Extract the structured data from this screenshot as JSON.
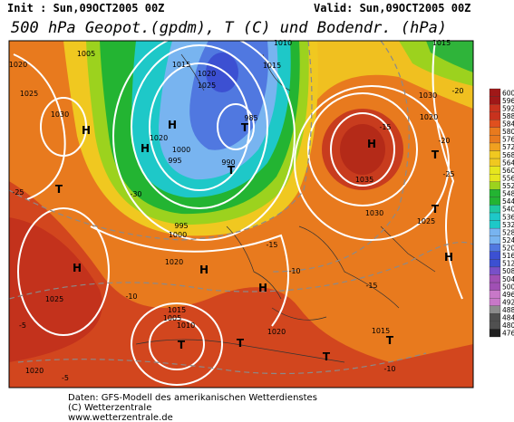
{
  "header": {
    "init": "Init : Sun,09OCT2005 00Z",
    "valid": "Valid: Sun,09OCT2005 00Z",
    "title": "500 hPa Geopot.(gpdm), T (C) und Bodendr. (hPa)"
  },
  "colorbar": {
    "levels": [
      600,
      596,
      592,
      588,
      584,
      580,
      576,
      572,
      568,
      564,
      560,
      556,
      552,
      548,
      544,
      540,
      536,
      532,
      528,
      524,
      520,
      516,
      512,
      508,
      504,
      500,
      496,
      492,
      488,
      484,
      480,
      476
    ]
  },
  "map": {
    "labels": [
      "1005",
      "1010",
      "1015",
      "1020",
      "1015",
      "1020",
      "1025",
      "1030",
      "H",
      "1025",
      "H",
      "T",
      "1020",
      "1000",
      "995",
      "990",
      "T",
      "T",
      "H",
      "985",
      "1015",
      "1020",
      "1030",
      "H",
      "1035",
      "1030",
      "1025",
      "T",
      "T",
      "H",
      "H",
      "1025",
      "H",
      "1020",
      "T",
      "1005",
      "1010",
      "1015",
      "1020",
      "T",
      "T",
      "1015",
      "H",
      "-30",
      "-25",
      "-20",
      "-15",
      "-10",
      "-5",
      "-15",
      "-10",
      "-10",
      "-20",
      "-25",
      "-15",
      "-5",
      "T",
      "995",
      "1000",
      "1020"
    ]
  },
  "footer": {
    "line1": "Daten: GFS-Modell des amerikanischen Wetterdienstes",
    "line2": "(C) Wetterzentrale",
    "line3": "www.wetterzentrale.de"
  }
}
